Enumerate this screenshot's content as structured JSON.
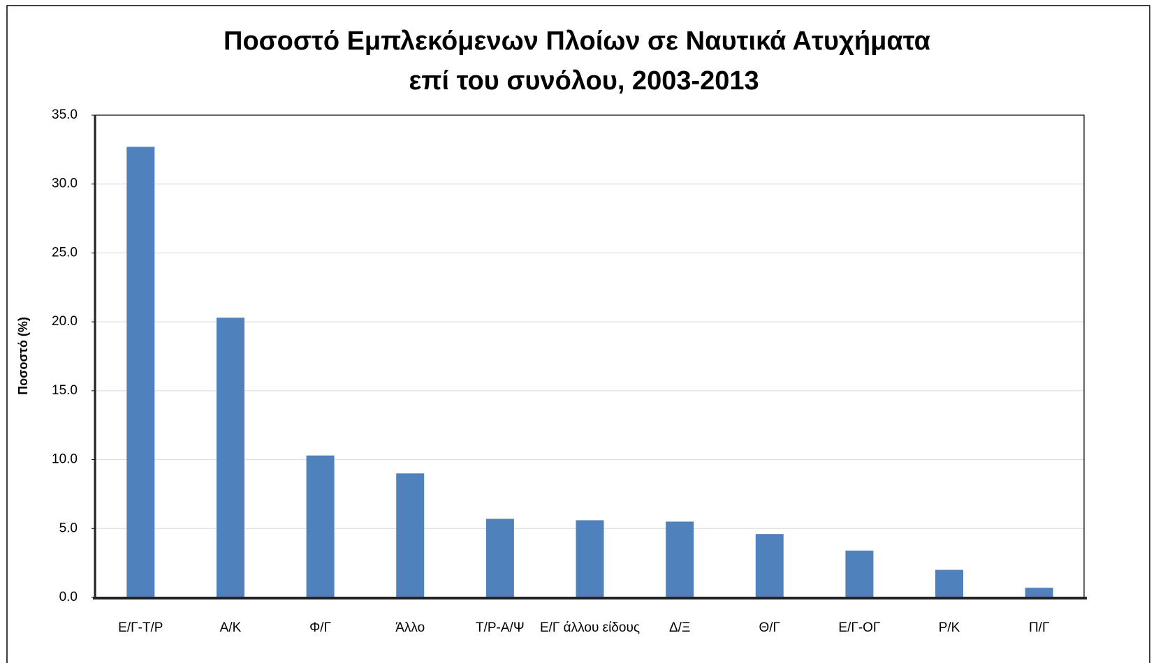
{
  "chart_data": {
    "type": "bar",
    "title": [
      "Ποσοστό  Εμπλεκόμενων  Πλοίων  σε Ναυτικά  Ατυχήματα",
      "επί  του συνόλου, 2003-2013"
    ],
    "y_label": "Ποσοστό (%)",
    "categories": [
      "Ε/Γ-Τ/Ρ",
      "Α/Κ",
      "Φ/Γ",
      "Άλλο",
      "Τ/Ρ-Α/Ψ",
      "Ε/Γ άλλου είδους",
      "Δ/Ξ",
      "Θ/Γ",
      "Ε/Γ-ΟΓ",
      "Ρ/Κ",
      "Π/Γ"
    ],
    "values": [
      32.7,
      20.3,
      10.3,
      9.0,
      5.7,
      5.6,
      5.5,
      4.6,
      3.4,
      2.0,
      0.7
    ],
    "color": "#4f81bd",
    "ylim": [
      0,
      35
    ],
    "yticks": [
      {
        "value": 0,
        "label": "0.0"
      },
      {
        "value": 5,
        "label": "5.0"
      },
      {
        "value": 10,
        "label": "10.0"
      },
      {
        "value": 15,
        "label": "15.0"
      },
      {
        "value": 20,
        "label": "20.0"
      },
      {
        "value": 25,
        "label": "25.0"
      },
      {
        "value": 30,
        "label": "30.0"
      },
      {
        "value": 35,
        "label": "35.0"
      }
    ],
    "grid": true
  }
}
